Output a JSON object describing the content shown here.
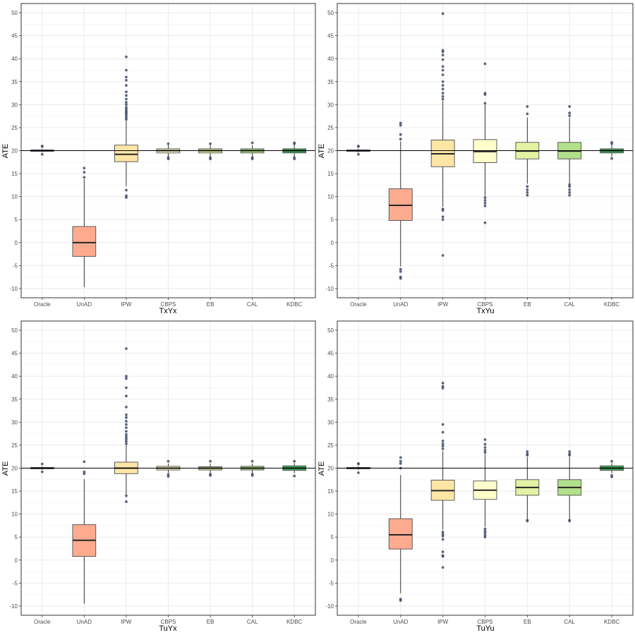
{
  "figure": {
    "ylabel": "ATE"
  },
  "colors": {
    "Oracle": "#d7191c",
    "UnAD": "#fcab8f",
    "IPW": "#fde5a6",
    "CBPS": "#ffffcc",
    "EB": "#e1f2a3",
    "CAL": "#b2df8a",
    "KDBC": "#41ab5d",
    "reference_line": "#000000",
    "outlier": "#404e6b",
    "grid": "#ebebeb",
    "panel_border": "#333333"
  },
  "chart_data": [
    {
      "type": "boxplot",
      "title": "",
      "xlabel": "TxYx",
      "ylabel": "ATE",
      "ylim": [
        -12,
        52
      ],
      "yticks": [
        -10,
        -5,
        0,
        5,
        10,
        15,
        20,
        25,
        30,
        35,
        40,
        45,
        50
      ],
      "reference_line": 20,
      "categories": [
        "Oracle",
        "UnAD",
        "IPW",
        "CBPS",
        "EB",
        "CAL",
        "KDBC"
      ],
      "boxes": [
        {
          "q1": 19.85,
          "median": 20.0,
          "q3": 20.15,
          "whisker_low": 19.6,
          "whisker_high": 20.4,
          "outliers": [
            19.2,
            20.9,
            21.0
          ]
        },
        {
          "q1": -3.0,
          "median": 0.0,
          "q3": 3.5,
          "whisker_low": -9.7,
          "whisker_high": 13.8,
          "outliers": [
            14.2,
            15.3,
            16.2
          ]
        },
        {
          "q1": 17.6,
          "median": 19.2,
          "q3": 21.2,
          "whisker_low": 12.3,
          "whisker_high": 26.5,
          "outliers": [
            9.8,
            10.2,
            11.4,
            26.8,
            27.2,
            27.6,
            28.0,
            28.3,
            28.6,
            29.0,
            29.4,
            30.0,
            30.5,
            31.2,
            32.0,
            32.8,
            34.2,
            35.3,
            36.0,
            37.5,
            40.4
          ]
        },
        {
          "q1": 19.5,
          "median": 20.0,
          "q3": 20.4,
          "whisker_low": 18.7,
          "whisker_high": 21.2,
          "outliers": [
            18.2,
            18.5,
            21.5
          ]
        },
        {
          "q1": 19.5,
          "median": 20.0,
          "q3": 20.4,
          "whisker_low": 18.7,
          "whisker_high": 21.2,
          "outliers": [
            18.2,
            18.5,
            21.5
          ]
        },
        {
          "q1": 19.5,
          "median": 20.0,
          "q3": 20.4,
          "whisker_low": 18.7,
          "whisker_high": 21.2,
          "outliers": [
            18.2,
            18.5,
            21.7
          ]
        },
        {
          "q1": 19.5,
          "median": 20.0,
          "q3": 20.4,
          "whisker_low": 18.7,
          "whisker_high": 21.2,
          "outliers": [
            18.2,
            18.5,
            21.5,
            21.7
          ]
        }
      ]
    },
    {
      "type": "boxplot",
      "title": "",
      "xlabel": "TxYu",
      "ylabel": "ATE",
      "ylim": [
        -12,
        52
      ],
      "yticks": [
        -10,
        -5,
        0,
        5,
        10,
        15,
        20,
        25,
        30,
        35,
        40,
        45,
        50
      ],
      "reference_line": 20,
      "categories": [
        "Oracle",
        "UnAD",
        "IPW",
        "CBPS",
        "EB",
        "CAL",
        "KDBC"
      ],
      "boxes": [
        {
          "q1": 19.85,
          "median": 20.0,
          "q3": 20.15,
          "whisker_low": 19.6,
          "whisker_high": 20.4,
          "outliers": [
            19.2,
            20.9,
            21.0
          ]
        },
        {
          "q1": 4.8,
          "median": 8.1,
          "q3": 11.7,
          "whisker_low": -5.2,
          "whisker_high": 22.0,
          "outliers": [
            -5.8,
            -6.3,
            -7.5,
            -7.8,
            22.5,
            23.5,
            25.5,
            26.0
          ]
        },
        {
          "q1": 16.5,
          "median": 19.3,
          "q3": 22.3,
          "whisker_low": 7.8,
          "whisker_high": 30.8,
          "outliers": [
            -2.8,
            5.0,
            5.6,
            7.0,
            7.3,
            31.2,
            31.8,
            32.5,
            33.4,
            34.2,
            35.0,
            36.5,
            37.5,
            38.3,
            39.8,
            40.8,
            41.5,
            41.8,
            49.8
          ]
        },
        {
          "q1": 17.4,
          "median": 19.8,
          "q3": 22.4,
          "whisker_low": 10.2,
          "whisker_high": 30.0,
          "outliers": [
            4.3,
            8.0,
            8.6,
            9.2,
            9.8,
            30.3,
            32.2,
            32.5,
            38.9
          ]
        },
        {
          "q1": 18.2,
          "median": 19.9,
          "q3": 21.8,
          "whisker_low": 12.8,
          "whisker_high": 27.2,
          "outliers": [
            10.3,
            10.9,
            11.5,
            12.2,
            28.0,
            29.6
          ]
        },
        {
          "q1": 18.2,
          "median": 19.9,
          "q3": 21.8,
          "whisker_low": 12.8,
          "whisker_high": 27.2,
          "outliers": [
            10.3,
            10.9,
            11.5,
            12.2,
            12.6,
            27.6,
            28.2,
            29.6
          ]
        },
        {
          "q1": 19.5,
          "median": 20.0,
          "q3": 20.4,
          "whisker_low": 18.7,
          "whisker_high": 21.2,
          "outliers": [
            18.3,
            21.5,
            21.8
          ]
        }
      ]
    },
    {
      "type": "boxplot",
      "title": "",
      "xlabel": "TuYx",
      "ylabel": "ATE",
      "ylim": [
        -12,
        52
      ],
      "yticks": [
        -10,
        -5,
        0,
        5,
        10,
        15,
        20,
        25,
        30,
        35,
        40,
        45,
        50
      ],
      "reference_line": 20,
      "categories": [
        "Oracle",
        "UnAD",
        "IPW",
        "CBPS",
        "EB",
        "CAL",
        "KDBC"
      ],
      "boxes": [
        {
          "q1": 19.85,
          "median": 20.0,
          "q3": 20.15,
          "whisker_low": 19.6,
          "whisker_high": 20.4,
          "outliers": [
            19.2,
            20.9
          ]
        },
        {
          "q1": 0.8,
          "median": 4.3,
          "q3": 7.7,
          "whisker_low": -9.5,
          "whisker_high": 17.6,
          "outliers": [
            18.8,
            19.2,
            21.4
          ]
        },
        {
          "q1": 18.8,
          "median": 20.0,
          "q3": 21.3,
          "whisker_low": 14.3,
          "whisker_high": 25.0,
          "outliers": [
            12.7,
            14.0,
            25.3,
            25.8,
            26.3,
            26.8,
            27.3,
            28.0,
            28.8,
            29.5,
            30.2,
            31.0,
            31.6,
            33.3,
            35.7,
            37.5,
            39.5,
            40.0,
            46.0
          ]
        },
        {
          "q1": 19.6,
          "median": 20.0,
          "q3": 20.4,
          "whisker_low": 18.9,
          "whisker_high": 21.0,
          "outliers": [
            18.2,
            18.6,
            21.5
          ]
        },
        {
          "q1": 19.6,
          "median": 20.0,
          "q3": 20.3,
          "whisker_low": 18.9,
          "whisker_high": 21.0,
          "outliers": [
            18.4,
            18.7,
            21.5
          ]
        },
        {
          "q1": 19.6,
          "median": 20.0,
          "q3": 20.4,
          "whisker_low": 18.9,
          "whisker_high": 21.0,
          "outliers": [
            18.4,
            18.7,
            21.5
          ]
        },
        {
          "q1": 19.5,
          "median": 20.0,
          "q3": 20.5,
          "whisker_low": 18.9,
          "whisker_high": 21.1,
          "outliers": [
            18.3,
            21.5
          ]
        }
      ]
    },
    {
      "type": "boxplot",
      "title": "",
      "xlabel": "TuYu",
      "ylabel": "ATE",
      "ylim": [
        -12,
        52
      ],
      "yticks": [
        -10,
        -5,
        0,
        5,
        10,
        15,
        20,
        25,
        30,
        35,
        40,
        45,
        50
      ],
      "reference_line": 20,
      "categories": [
        "Oracle",
        "UnAD",
        "IPW",
        "CBPS",
        "EB",
        "CAL",
        "KDBC"
      ],
      "boxes": [
        {
          "q1": 19.85,
          "median": 20.0,
          "q3": 20.15,
          "whisker_low": 19.6,
          "whisker_high": 20.4,
          "outliers": [
            19.0,
            20.9,
            21.0
          ]
        },
        {
          "q1": 2.4,
          "median": 5.5,
          "q3": 9.0,
          "whisker_low": -7.2,
          "whisker_high": 18.5,
          "outliers": [
            -8.5,
            -8.8,
            20.0,
            21.0,
            21.5,
            22.3
          ]
        },
        {
          "q1": 13.0,
          "median": 15.1,
          "q3": 17.4,
          "whisker_low": 6.6,
          "whisker_high": 23.7,
          "outliers": [
            -1.6,
            0.8,
            1.0,
            1.8,
            4.5,
            5.2,
            5.6,
            6.1,
            24.2,
            24.8,
            25.3,
            25.9,
            27.8,
            29.5,
            37.4,
            37.8,
            38.5
          ]
        },
        {
          "q1": 13.2,
          "median": 15.2,
          "q3": 17.2,
          "whisker_low": 7.3,
          "whisker_high": 23.0,
          "outliers": [
            5.0,
            5.4,
            5.9,
            6.3,
            6.8,
            23.4,
            23.9,
            24.5,
            25.2,
            26.2
          ]
        },
        {
          "q1": 14.1,
          "median": 15.8,
          "q3": 17.5,
          "whisker_low": 9.0,
          "whisker_high": 22.4,
          "outliers": [
            8.5,
            8.7,
            22.8,
            23.1,
            23.6
          ]
        },
        {
          "q1": 14.1,
          "median": 15.8,
          "q3": 17.5,
          "whisker_low": 9.0,
          "whisker_high": 22.4,
          "outliers": [
            8.5,
            8.7,
            22.8,
            23.1,
            23.6
          ]
        },
        {
          "q1": 19.5,
          "median": 20.0,
          "q3": 20.5,
          "whisker_low": 18.9,
          "whisker_high": 21.1,
          "outliers": [
            18.1,
            18.4,
            21.5
          ]
        }
      ]
    }
  ]
}
